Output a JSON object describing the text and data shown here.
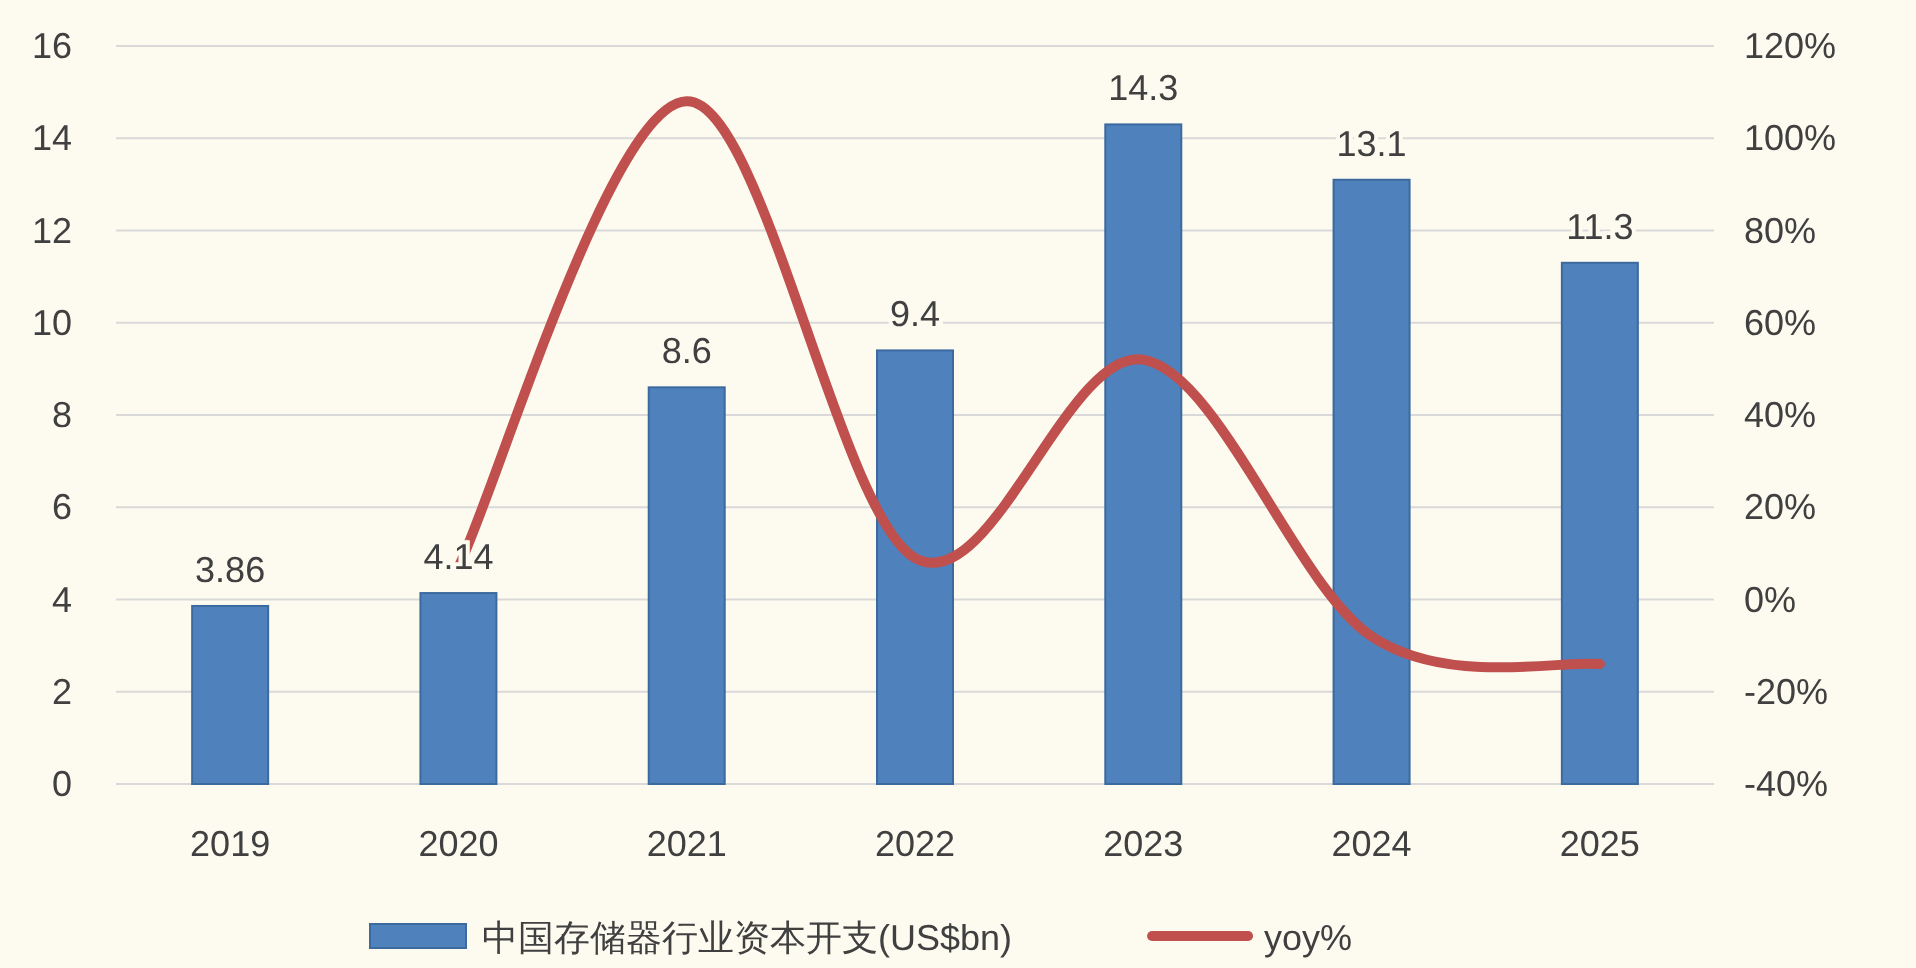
{
  "chart_data": {
    "type": "bar",
    "categories": [
      "2019",
      "2020",
      "2021",
      "2022",
      "2023",
      "2024",
      "2025"
    ],
    "series": [
      {
        "name": "中国存储器行业资本开支(US$bn)",
        "color": "#4f81bd",
        "values": [
          3.86,
          4.14,
          8.6,
          9.4,
          14.3,
          13.1,
          11.3
        ],
        "value_labels": [
          "3.86",
          "4.14",
          "8.6",
          "9.4",
          "14.3",
          "13.1",
          "11.3"
        ]
      },
      {
        "name": "yoy%",
        "type": "line",
        "axis": "y2",
        "color": "#c0504d",
        "values": [
          null,
          7,
          108,
          9,
          52,
          -8,
          -14
        ]
      }
    ],
    "ylim": [
      0,
      16
    ],
    "yticks": [
      0,
      2,
      4,
      6,
      8,
      10,
      12,
      14,
      16
    ],
    "y2lim": [
      -40,
      120
    ],
    "y2ticks": [
      {
        "value": -40,
        "label": "-40%"
      },
      {
        "value": -20,
        "label": "-20%"
      },
      {
        "value": 0,
        "label": "0%"
      },
      {
        "value": 20,
        "label": "20%"
      },
      {
        "value": 40,
        "label": "40%"
      },
      {
        "value": 60,
        "label": "60%"
      },
      {
        "value": 80,
        "label": "80%"
      },
      {
        "value": 100,
        "label": "100%"
      },
      {
        "value": 120,
        "label": "120%"
      }
    ],
    "grid": "y",
    "legend": "bottom"
  }
}
